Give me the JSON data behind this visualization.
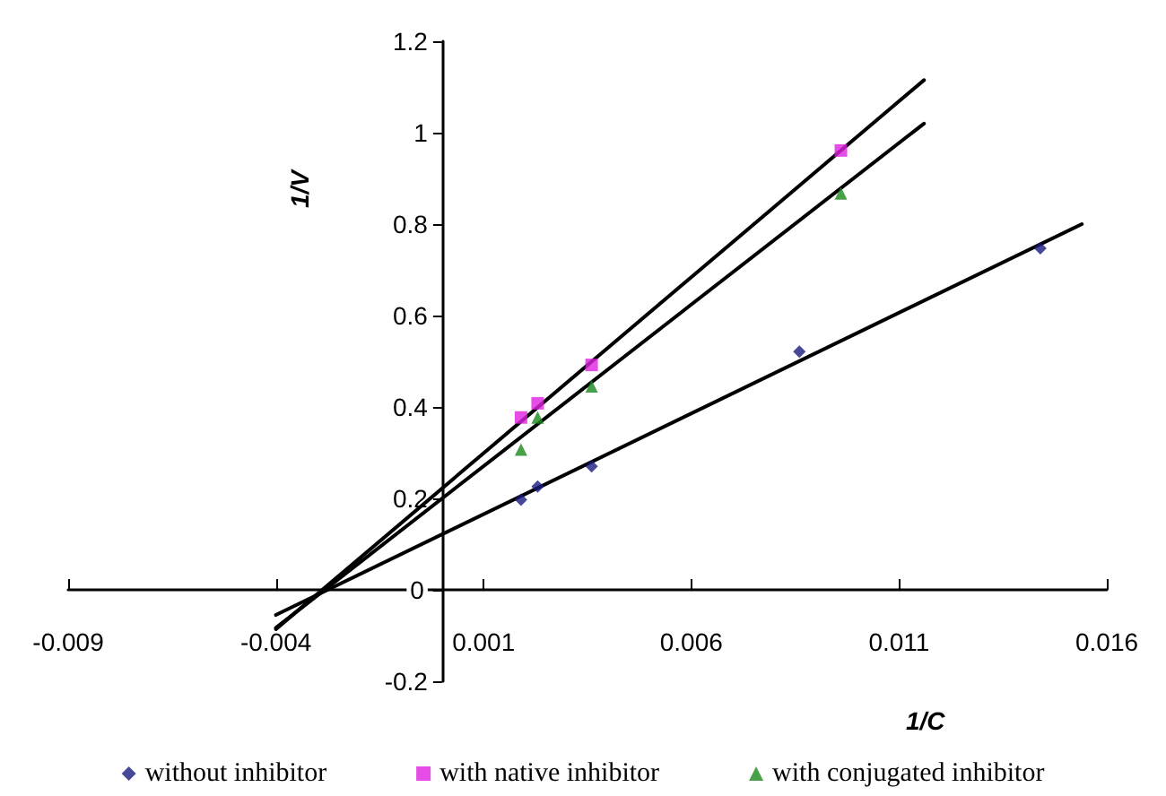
{
  "chart_data": {
    "type": "scatter",
    "xlabel": "1/C",
    "ylabel": "1/V",
    "xlim": [
      -0.009,
      0.016
    ],
    "xticks": [
      -0.009,
      -0.004,
      0.001,
      0.006,
      0.011,
      0.016
    ],
    "ylim": [
      -0.2,
      1.2
    ],
    "yticks": [
      -0.2,
      0,
      0.2,
      0.4,
      0.6,
      0.8,
      1,
      1.2
    ],
    "grid": false,
    "legend": "bottom",
    "series": [
      {
        "name": "without inhibitor",
        "color": "#1a1a80",
        "marker": "diamond",
        "x": [
          0.0019,
          0.0023,
          0.0036,
          0.0086,
          0.0144
        ],
        "values": [
          0.197,
          0.226,
          0.27,
          0.521,
          0.747
        ]
      },
      {
        "name": "with native inhibitor",
        "color": "#e020e0",
        "marker": "square",
        "x": [
          0.0019,
          0.0023,
          0.0036,
          0.0096
        ],
        "values": [
          0.377,
          0.408,
          0.492,
          0.961
        ]
      },
      {
        "name": "with conjugated inhibitor",
        "color": "#1a8a1a",
        "marker": "triangle",
        "x": [
          0.0019,
          0.0023,
          0.0036,
          0.0096
        ],
        "values": [
          0.307,
          0.377,
          0.445,
          0.867
        ]
      },
      {
        "type": "line",
        "color": "#000000",
        "marker": "none",
        "x": [
          -0.004,
          0.0116
        ],
        "values": [
          -0.086,
          1.115
        ]
      },
      {
        "type": "line",
        "color": "#000000",
        "marker": "none",
        "x": [
          -0.004,
          0.0116
        ],
        "values": [
          -0.083,
          1.02
        ]
      },
      {
        "type": "line",
        "color": "#000000",
        "marker": "none",
        "x": [
          -0.004,
          0.0154
        ],
        "values": [
          -0.055,
          0.8
        ]
      }
    ]
  }
}
